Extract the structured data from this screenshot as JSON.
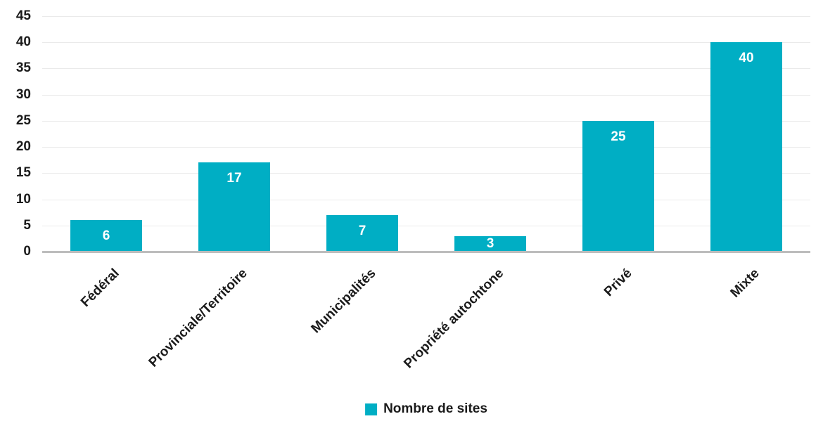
{
  "chart_data": {
    "type": "bar",
    "title": "",
    "categories": [
      "Fédéral",
      "Provinciale/Territoire",
      "Municipalités",
      "Propriété autochtone",
      "Privé",
      "Mixte"
    ],
    "values": [
      6,
      17,
      7,
      3,
      25,
      40
    ],
    "series_name": "Nombre de sites",
    "xlabel": "",
    "ylabel": "",
    "ylim": [
      0,
      45
    ],
    "yticks": [
      0,
      5,
      10,
      15,
      20,
      25,
      30,
      35,
      40,
      45
    ],
    "grid": true,
    "legend_position": "bottom-center",
    "data_labels": "inside-end-white",
    "x_label_rotation_deg": 45,
    "colors": {
      "bar": "#00AEC4",
      "data_label": "#FFFFFF",
      "axis_line": "#BDBDBD",
      "gridline": "#EAEAEA",
      "text": "#1A1A1A"
    }
  }
}
